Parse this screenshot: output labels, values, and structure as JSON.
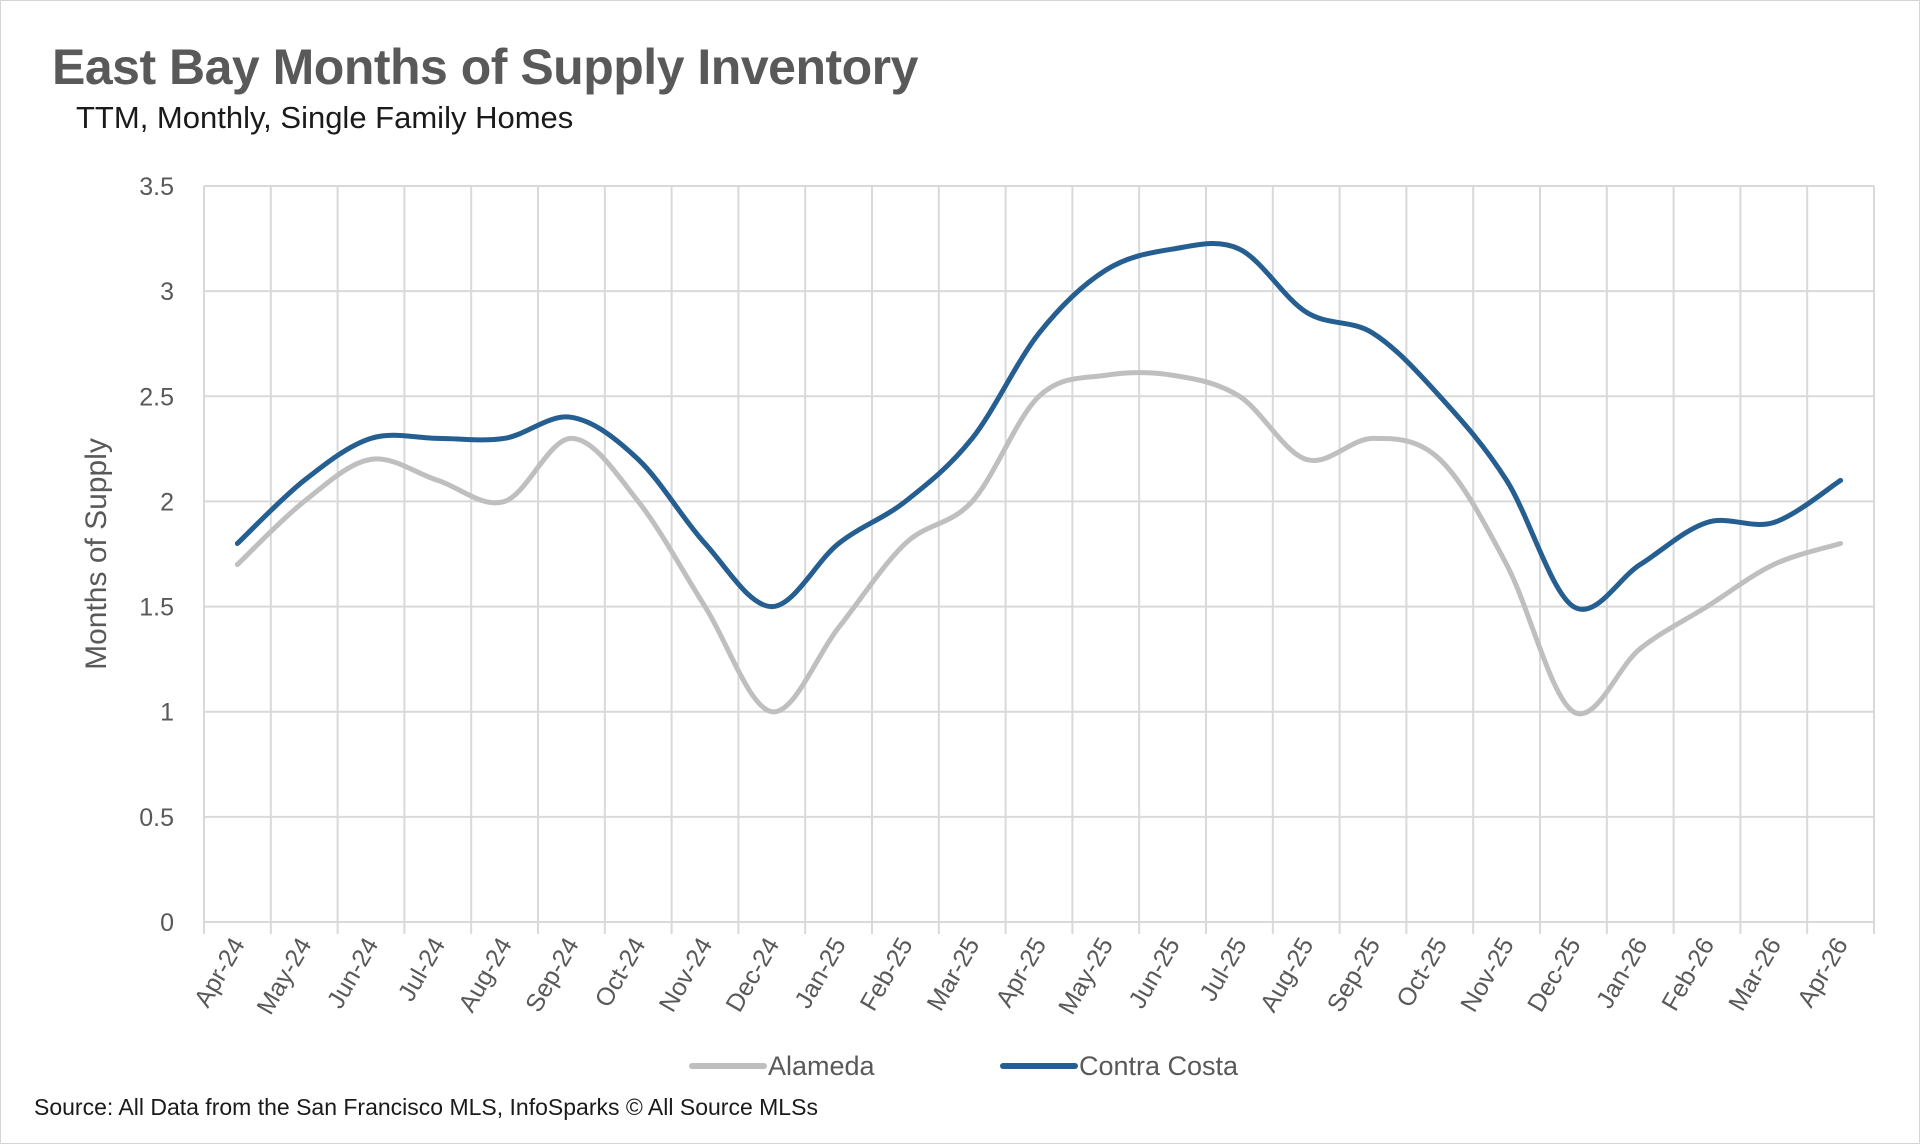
{
  "title": "East Bay Months of Supply Inventory",
  "subtitle": "TTM, Monthly, Single Family Homes",
  "source": "Source: All Data from the San Francisco MLS, InfoSparks © All Source MLSs",
  "chart_data": {
    "type": "line",
    "title": "East Bay Months of Supply Inventory",
    "subtitle": "TTM, Monthly, Single Family Homes",
    "xlabel": "",
    "ylabel": "Months of Supply",
    "ylim": [
      0,
      3.5
    ],
    "yticks": [
      "0",
      "0.5",
      "1",
      "1.5",
      "2",
      "2.5",
      "3",
      "3.5"
    ],
    "grid": true,
    "legend_position": "bottom",
    "categories": [
      "Apr-24",
      "May-24",
      "Jun-24",
      "Jul-24",
      "Aug-24",
      "Sep-24",
      "Oct-24",
      "Nov-24",
      "Dec-24",
      "Jan-25",
      "Feb-25",
      "Mar-25",
      "Apr-25",
      "May-25",
      "Jun-25",
      "Jul-25",
      "Aug-25",
      "Sep-25",
      "Oct-25",
      "Nov-25",
      "Dec-25",
      "Jan-26",
      "Feb-26",
      "Mar-26",
      "Apr-26"
    ],
    "series": [
      {
        "name": "Alameda",
        "color": "#bfbfbf",
        "values": [
          1.7,
          2.0,
          2.2,
          2.1,
          2.0,
          2.3,
          2.0,
          1.5,
          1.0,
          1.4,
          1.8,
          2.0,
          2.5,
          2.6,
          2.6,
          2.5,
          2.2,
          2.3,
          2.2,
          1.7,
          1.0,
          1.3,
          1.5,
          1.7,
          1.8
        ]
      },
      {
        "name": "Contra Costa",
        "color": "#255e91",
        "values": [
          1.8,
          2.1,
          2.3,
          2.3,
          2.3,
          2.4,
          2.2,
          1.8,
          1.5,
          1.8,
          2.0,
          2.3,
          2.8,
          3.1,
          3.2,
          3.2,
          2.9,
          2.8,
          2.5,
          2.1,
          1.5,
          1.7,
          1.9,
          1.9,
          2.1
        ]
      }
    ]
  }
}
